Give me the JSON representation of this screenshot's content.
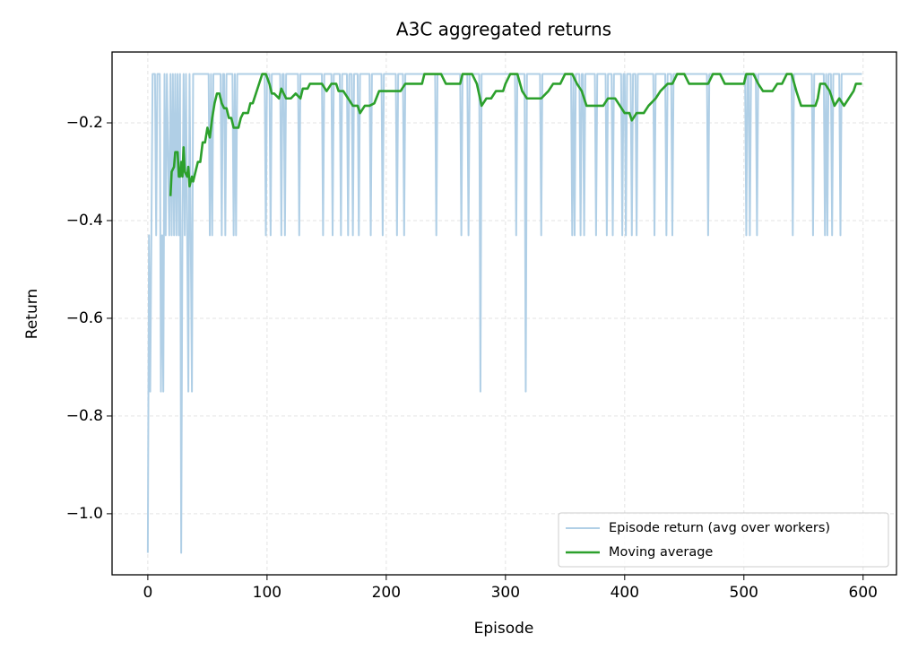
{
  "chart_data": {
    "type": "line",
    "title": "A3C aggregated returns",
    "x_label": "Episode",
    "y_label": "Return",
    "xlim": [
      -30,
      628
    ],
    "ylim": [
      -1.125,
      -0.055
    ],
    "xticks": [
      0,
      100,
      200,
      300,
      400,
      500,
      600
    ],
    "yticks": [
      {
        "value": -1.0,
        "label": "−1.0"
      },
      {
        "value": -0.8,
        "label": "−0.8"
      },
      {
        "value": -0.6,
        "label": "−0.6"
      },
      {
        "value": -0.4,
        "label": "−0.4"
      },
      {
        "value": -0.2,
        "label": "−0.2"
      }
    ],
    "grid": true,
    "legend": "lower right",
    "series": [
      {
        "name": "Episode return (avg over workers)",
        "color": "#b0cfe6",
        "width": 2,
        "x": [
          0,
          1,
          2,
          3,
          4,
          6,
          7,
          8,
          10,
          11,
          12,
          13,
          14,
          15,
          16,
          18,
          19,
          20,
          21,
          22,
          23,
          24,
          25,
          26,
          27,
          28,
          29,
          30,
          31,
          32,
          33,
          34,
          35,
          36,
          37,
          38,
          40,
          51,
          52,
          53,
          54,
          55,
          61,
          62,
          63,
          64,
          65,
          66,
          71,
          72,
          73,
          74,
          75,
          98,
          99,
          100,
          102,
          103,
          104,
          111,
          112,
          113,
          114,
          115,
          116,
          126,
          127,
          128,
          146,
          147,
          148,
          154,
          155,
          156,
          161,
          162,
          163,
          167,
          168,
          169,
          171,
          172,
          173,
          176,
          177,
          178,
          186,
          187,
          188,
          196,
          197,
          198,
          208,
          209,
          210,
          214,
          215,
          216,
          241,
          242,
          243,
          262,
          263,
          264,
          268,
          269,
          270,
          278,
          279,
          280,
          308,
          309,
          310,
          316,
          317,
          318,
          329,
          330,
          331,
          355,
          356,
          357,
          358,
          359,
          362,
          363,
          364,
          365,
          366,
          367,
          375,
          376,
          377,
          384,
          385,
          386,
          389,
          390,
          391,
          397,
          398,
          399,
          400,
          401,
          402,
          405,
          406,
          407,
          409,
          410,
          411,
          424,
          425,
          426,
          434,
          435,
          436,
          439,
          440,
          441,
          469,
          470,
          471,
          501,
          502,
          503,
          504,
          505,
          506,
          510,
          511,
          512,
          540,
          541,
          542,
          557,
          558,
          559,
          567,
          568,
          569,
          570,
          571,
          573,
          574,
          575,
          580,
          581,
          582,
          599
        ],
        "values": [
          -1.08,
          -0.43,
          -0.75,
          -0.43,
          -0.1,
          -0.1,
          -0.43,
          -0.1,
          -0.1,
          -0.75,
          -0.43,
          -0.75,
          -0.1,
          -0.43,
          -0.1,
          -0.43,
          -0.1,
          -0.43,
          -0.1,
          -0.43,
          -0.1,
          -0.43,
          -0.1,
          -0.43,
          -0.1,
          -1.08,
          -0.43,
          -0.1,
          -0.43,
          -0.1,
          -0.43,
          -0.75,
          -0.1,
          -0.43,
          -0.75,
          -0.1,
          -0.1,
          -0.1,
          -0.43,
          -0.1,
          -0.43,
          -0.1,
          -0.1,
          -0.43,
          -0.1,
          -0.1,
          -0.43,
          -0.1,
          -0.1,
          -0.43,
          -0.1,
          -0.43,
          -0.1,
          -0.1,
          -0.43,
          -0.1,
          -0.1,
          -0.43,
          -0.1,
          -0.1,
          -0.43,
          -0.1,
          -0.1,
          -0.43,
          -0.1,
          -0.1,
          -0.43,
          -0.1,
          -0.1,
          -0.43,
          -0.1,
          -0.1,
          -0.43,
          -0.1,
          -0.1,
          -0.43,
          -0.1,
          -0.1,
          -0.43,
          -0.1,
          -0.1,
          -0.43,
          -0.1,
          -0.1,
          -0.43,
          -0.1,
          -0.1,
          -0.43,
          -0.1,
          -0.1,
          -0.43,
          -0.1,
          -0.1,
          -0.43,
          -0.1,
          -0.1,
          -0.43,
          -0.1,
          -0.1,
          -0.43,
          -0.1,
          -0.1,
          -0.43,
          -0.1,
          -0.1,
          -0.43,
          -0.1,
          -0.1,
          -0.75,
          -0.1,
          -0.1,
          -0.43,
          -0.1,
          -0.1,
          -0.75,
          -0.1,
          -0.1,
          -0.43,
          -0.1,
          -0.1,
          -0.43,
          -0.1,
          -0.43,
          -0.1,
          -0.1,
          -0.43,
          -0.1,
          -0.1,
          -0.43,
          -0.1,
          -0.1,
          -0.43,
          -0.1,
          -0.1,
          -0.43,
          -0.1,
          -0.1,
          -0.43,
          -0.1,
          -0.1,
          -0.43,
          -0.1,
          -0.1,
          -0.43,
          -0.1,
          -0.1,
          -0.43,
          -0.1,
          -0.1,
          -0.43,
          -0.1,
          -0.1,
          -0.43,
          -0.1,
          -0.1,
          -0.43,
          -0.1,
          -0.1,
          -0.43,
          -0.1,
          -0.1,
          -0.43,
          -0.1,
          -0.1,
          -0.43,
          -0.1,
          -0.1,
          -0.43,
          -0.1,
          -0.1,
          -0.43,
          -0.1,
          -0.1,
          -0.43,
          -0.1,
          -0.1,
          -0.43,
          -0.1,
          -0.1,
          -0.43,
          -0.1,
          -0.43,
          -0.1,
          -0.1,
          -0.43,
          -0.1,
          -0.1,
          -0.43,
          -0.1,
          -0.1
        ]
      },
      {
        "name": "Moving average",
        "color": "#2ca02c",
        "width": 2.6,
        "x": [
          19,
          20,
          22,
          23,
          25,
          26,
          27,
          28,
          29,
          30,
          31,
          33,
          34,
          35,
          37,
          38,
          40,
          42,
          44,
          46,
          48,
          50,
          52,
          54,
          56,
          58,
          60,
          62,
          64,
          66,
          68,
          70,
          72,
          76,
          78,
          80,
          84,
          86,
          88,
          92,
          96,
          99,
          102,
          104,
          106,
          110,
          112,
          116,
          120,
          124,
          128,
          130,
          134,
          136,
          146,
          150,
          154,
          158,
          160,
          164,
          168,
          172,
          176,
          178,
          182,
          186,
          190,
          194,
          212,
          216,
          226,
          230,
          232,
          246,
          250,
          262,
          264,
          272,
          276,
          280,
          284,
          288,
          292,
          298,
          300,
          304,
          310,
          314,
          318,
          330,
          336,
          340,
          346,
          350,
          356,
          360,
          364,
          368,
          382,
          386,
          392,
          396,
          400,
          404,
          406,
          410,
          416,
          420,
          426,
          430,
          436,
          440,
          444,
          450,
          454,
          470,
          474,
          480,
          484,
          500,
          502,
          508,
          512,
          516,
          524,
          528,
          532,
          536,
          540,
          544,
          548,
          560,
          562,
          564,
          568,
          572,
          576,
          580,
          584,
          588,
          592,
          594,
          599
        ],
        "values": [
          -0.35,
          -0.3,
          -0.29,
          -0.26,
          -0.26,
          -0.31,
          -0.31,
          -0.28,
          -0.31,
          -0.25,
          -0.3,
          -0.31,
          -0.29,
          -0.33,
          -0.31,
          -0.32,
          -0.3,
          -0.28,
          -0.28,
          -0.24,
          -0.24,
          -0.21,
          -0.23,
          -0.19,
          -0.16,
          -0.14,
          -0.14,
          -0.16,
          -0.17,
          -0.17,
          -0.19,
          -0.19,
          -0.21,
          -0.21,
          -0.19,
          -0.18,
          -0.18,
          -0.16,
          -0.16,
          -0.13,
          -0.1,
          -0.1,
          -0.12,
          -0.14,
          -0.14,
          -0.15,
          -0.13,
          -0.15,
          -0.15,
          -0.14,
          -0.15,
          -0.13,
          -0.13,
          -0.12,
          -0.12,
          -0.135,
          -0.12,
          -0.12,
          -0.135,
          -0.135,
          -0.15,
          -0.165,
          -0.165,
          -0.18,
          -0.165,
          -0.165,
          -0.16,
          -0.135,
          -0.135,
          -0.12,
          -0.12,
          -0.12,
          -0.1,
          -0.1,
          -0.12,
          -0.12,
          -0.1,
          -0.1,
          -0.12,
          -0.165,
          -0.15,
          -0.15,
          -0.135,
          -0.135,
          -0.12,
          -0.1,
          -0.1,
          -0.135,
          -0.15,
          -0.15,
          -0.135,
          -0.12,
          -0.12,
          -0.1,
          -0.1,
          -0.12,
          -0.135,
          -0.165,
          -0.165,
          -0.15,
          -0.15,
          -0.165,
          -0.18,
          -0.18,
          -0.195,
          -0.18,
          -0.18,
          -0.165,
          -0.15,
          -0.135,
          -0.12,
          -0.12,
          -0.1,
          -0.1,
          -0.12,
          -0.12,
          -0.1,
          -0.1,
          -0.12,
          -0.12,
          -0.1,
          -0.1,
          -0.12,
          -0.135,
          -0.135,
          -0.12,
          -0.12,
          -0.1,
          -0.1,
          -0.135,
          -0.165,
          -0.165,
          -0.15,
          -0.12,
          -0.12,
          -0.135,
          -0.165,
          -0.15,
          -0.165,
          -0.15,
          -0.135,
          -0.12,
          -0.12
        ]
      }
    ]
  }
}
